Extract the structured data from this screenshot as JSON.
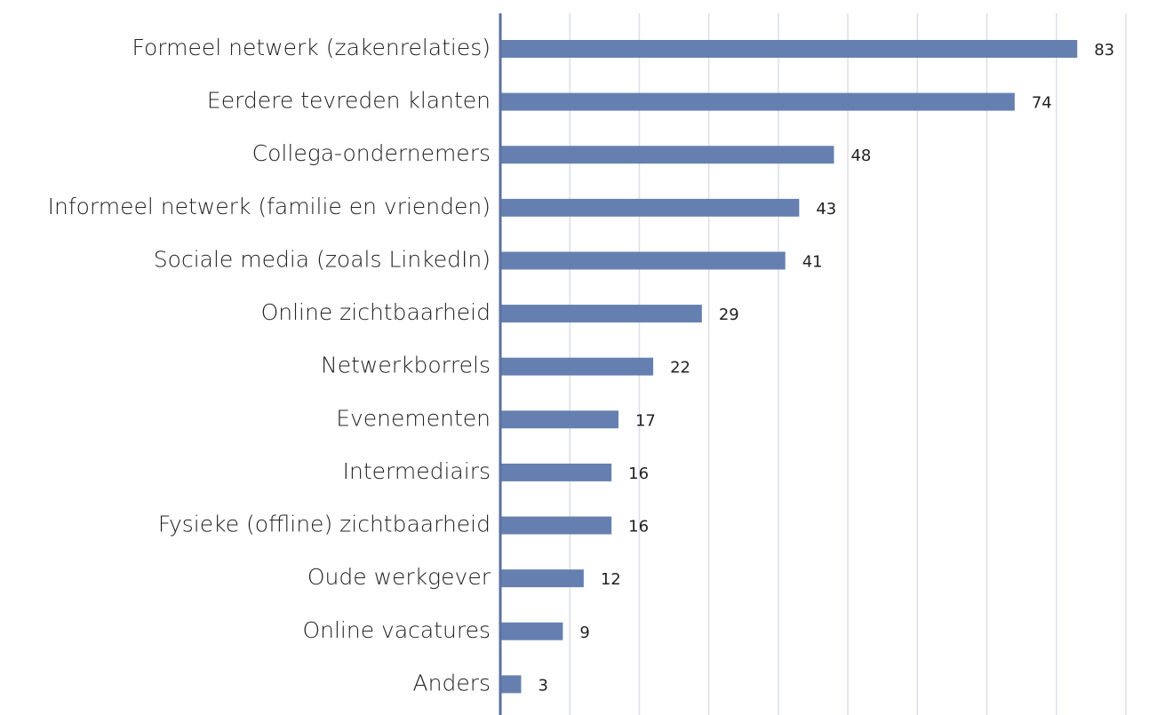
{
  "chart_data": {
    "type": "bar",
    "orientation": "horizontal",
    "categories": [
      "Formeel netwerk (zakenrelaties)",
      "Eerdere tevreden klanten",
      "Collega-ondernemers",
      "Informeel netwerk (familie en vrienden)",
      "Sociale media (zoals LinkedIn)",
      "Online zichtbaarheid",
      "Netwerkborrels",
      "Evenementen",
      "Intermediairs",
      "Fysieke (offline) zichtbaarheid",
      "Oude werkgever",
      "Online vacatures",
      "Anders"
    ],
    "values": [
      83,
      74,
      48,
      43,
      41,
      29,
      22,
      17,
      16,
      16,
      12,
      9,
      3
    ],
    "color": "#6580b0",
    "xlim": [
      0,
      90
    ],
    "xticks": [
      0,
      10,
      20,
      30,
      40,
      50,
      60,
      70,
      80,
      90
    ],
    "grid": true
  }
}
